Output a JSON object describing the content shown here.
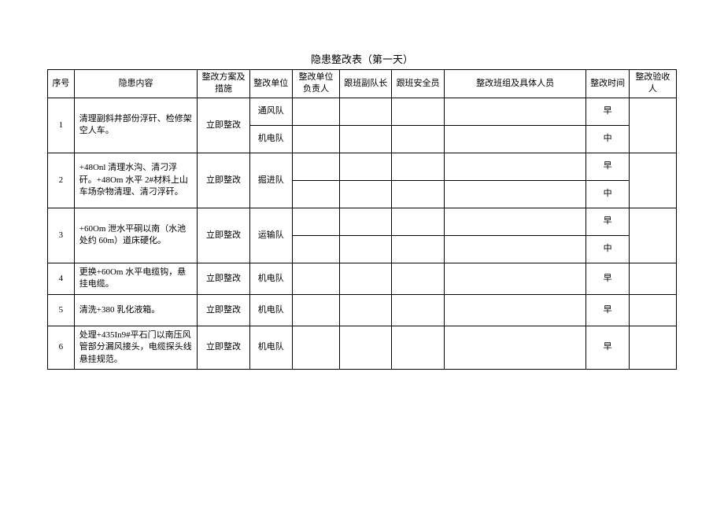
{
  "title": "隐患整改表（第一天）",
  "headers": {
    "seq": "序号",
    "content": "隐患内容",
    "plan": "整改方案及措施",
    "unit": "整改单位",
    "leader": "整改单位负责人",
    "deputy": "跟班副队长",
    "safety": "跟班安全员",
    "team": "整改班组及具体人员",
    "time": "整改时间",
    "acceptor": "整改验收人"
  },
  "rows": [
    {
      "seq": "1",
      "content": "清理副斜井部份浮矸、检修架空人车。",
      "plan": "立即整改",
      "subrows": [
        {
          "unit": "通风队",
          "time": "早"
        },
        {
          "unit": "机电队",
          "time": "中"
        }
      ]
    },
    {
      "seq": "2",
      "content": "+48Onl 清理水沟、清刁浮矸。+48Om 水平 2#材料上山车场杂物清理、清刁浮矸。",
      "plan": "立即整改",
      "unit": "掘进队",
      "subrows": [
        {
          "time": "早"
        },
        {
          "time": "中"
        }
      ]
    },
    {
      "seq": "3",
      "content": "+60Om 泄水平硐以南（水池处约 60m）道床硬化。",
      "plan": "立即整改",
      "unit": "运输队",
      "subrows": [
        {
          "time": "早"
        },
        {
          "time": "中"
        }
      ]
    },
    {
      "seq": "4",
      "content": "更换+60Om 水平电缆钩，悬挂电缆。",
      "plan": "立即整改",
      "unit": "机电队",
      "time": "早"
    },
    {
      "seq": "5",
      "content": "清洗+380 乳化液箱。",
      "plan": "立即整改",
      "unit": "机电队",
      "time": "早"
    },
    {
      "seq": "6",
      "content": "处理+435In9#平石门以南压风管部分漏风接头，电缆探头线悬挂规范。",
      "plan": "立即整改",
      "unit": "机电队",
      "time": "早"
    }
  ]
}
